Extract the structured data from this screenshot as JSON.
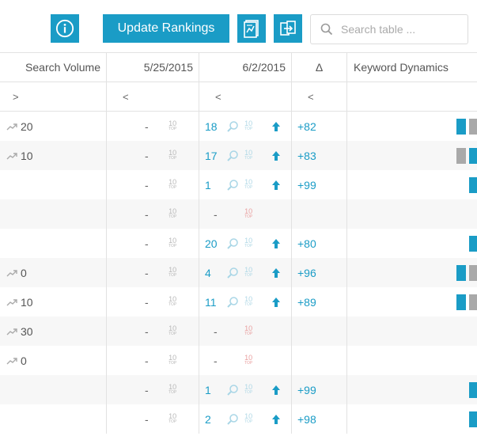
{
  "toolbar": {
    "update_label": "Update Rankings",
    "search_placeholder": "Search table ..."
  },
  "columns": [
    "Search Volume",
    "5/25/2015",
    "6/2/2015",
    "Δ",
    "Keyword Dynamics"
  ],
  "filters": [
    ">",
    "<",
    "<",
    "<",
    ""
  ],
  "colors": {
    "accent": "#1a9cc6",
    "gray_bar": "#a9a9a9",
    "not_ranked": "#e9a1a1"
  },
  "rows": [
    {
      "volume": "20",
      "trend": true,
      "old": "-",
      "new": "18",
      "delta": "+82",
      "bars": [
        "blue",
        "gray"
      ]
    },
    {
      "volume": "10",
      "trend": true,
      "old": "-",
      "new": "17",
      "delta": "+83",
      "bars": [
        "gray",
        "blue"
      ]
    },
    {
      "volume": "",
      "trend": false,
      "old": "-",
      "new": "1",
      "delta": "+99",
      "bars": [
        "blue"
      ]
    },
    {
      "volume": "",
      "trend": false,
      "old": "-",
      "new": "-",
      "delta": "",
      "bars": []
    },
    {
      "volume": "",
      "trend": false,
      "old": "-",
      "new": "20",
      "delta": "+80",
      "bars": [
        "blue"
      ]
    },
    {
      "volume": "0",
      "trend": true,
      "old": "-",
      "new": "4",
      "delta": "+96",
      "bars": [
        "blue",
        "gray"
      ]
    },
    {
      "volume": "10",
      "trend": true,
      "old": "-",
      "new": "11",
      "delta": "+89",
      "bars": [
        "blue",
        "gray"
      ]
    },
    {
      "volume": "30",
      "trend": true,
      "old": "-",
      "new": "-",
      "delta": "",
      "bars": []
    },
    {
      "volume": "0",
      "trend": true,
      "old": "-",
      "new": "-",
      "delta": "",
      "bars": []
    },
    {
      "volume": "",
      "trend": false,
      "old": "-",
      "new": "1",
      "delta": "+99",
      "bars": [
        "blue"
      ]
    },
    {
      "volume": "",
      "trend": false,
      "old": "-",
      "new": "2",
      "delta": "+98",
      "bars": [
        "blue"
      ]
    }
  ]
}
